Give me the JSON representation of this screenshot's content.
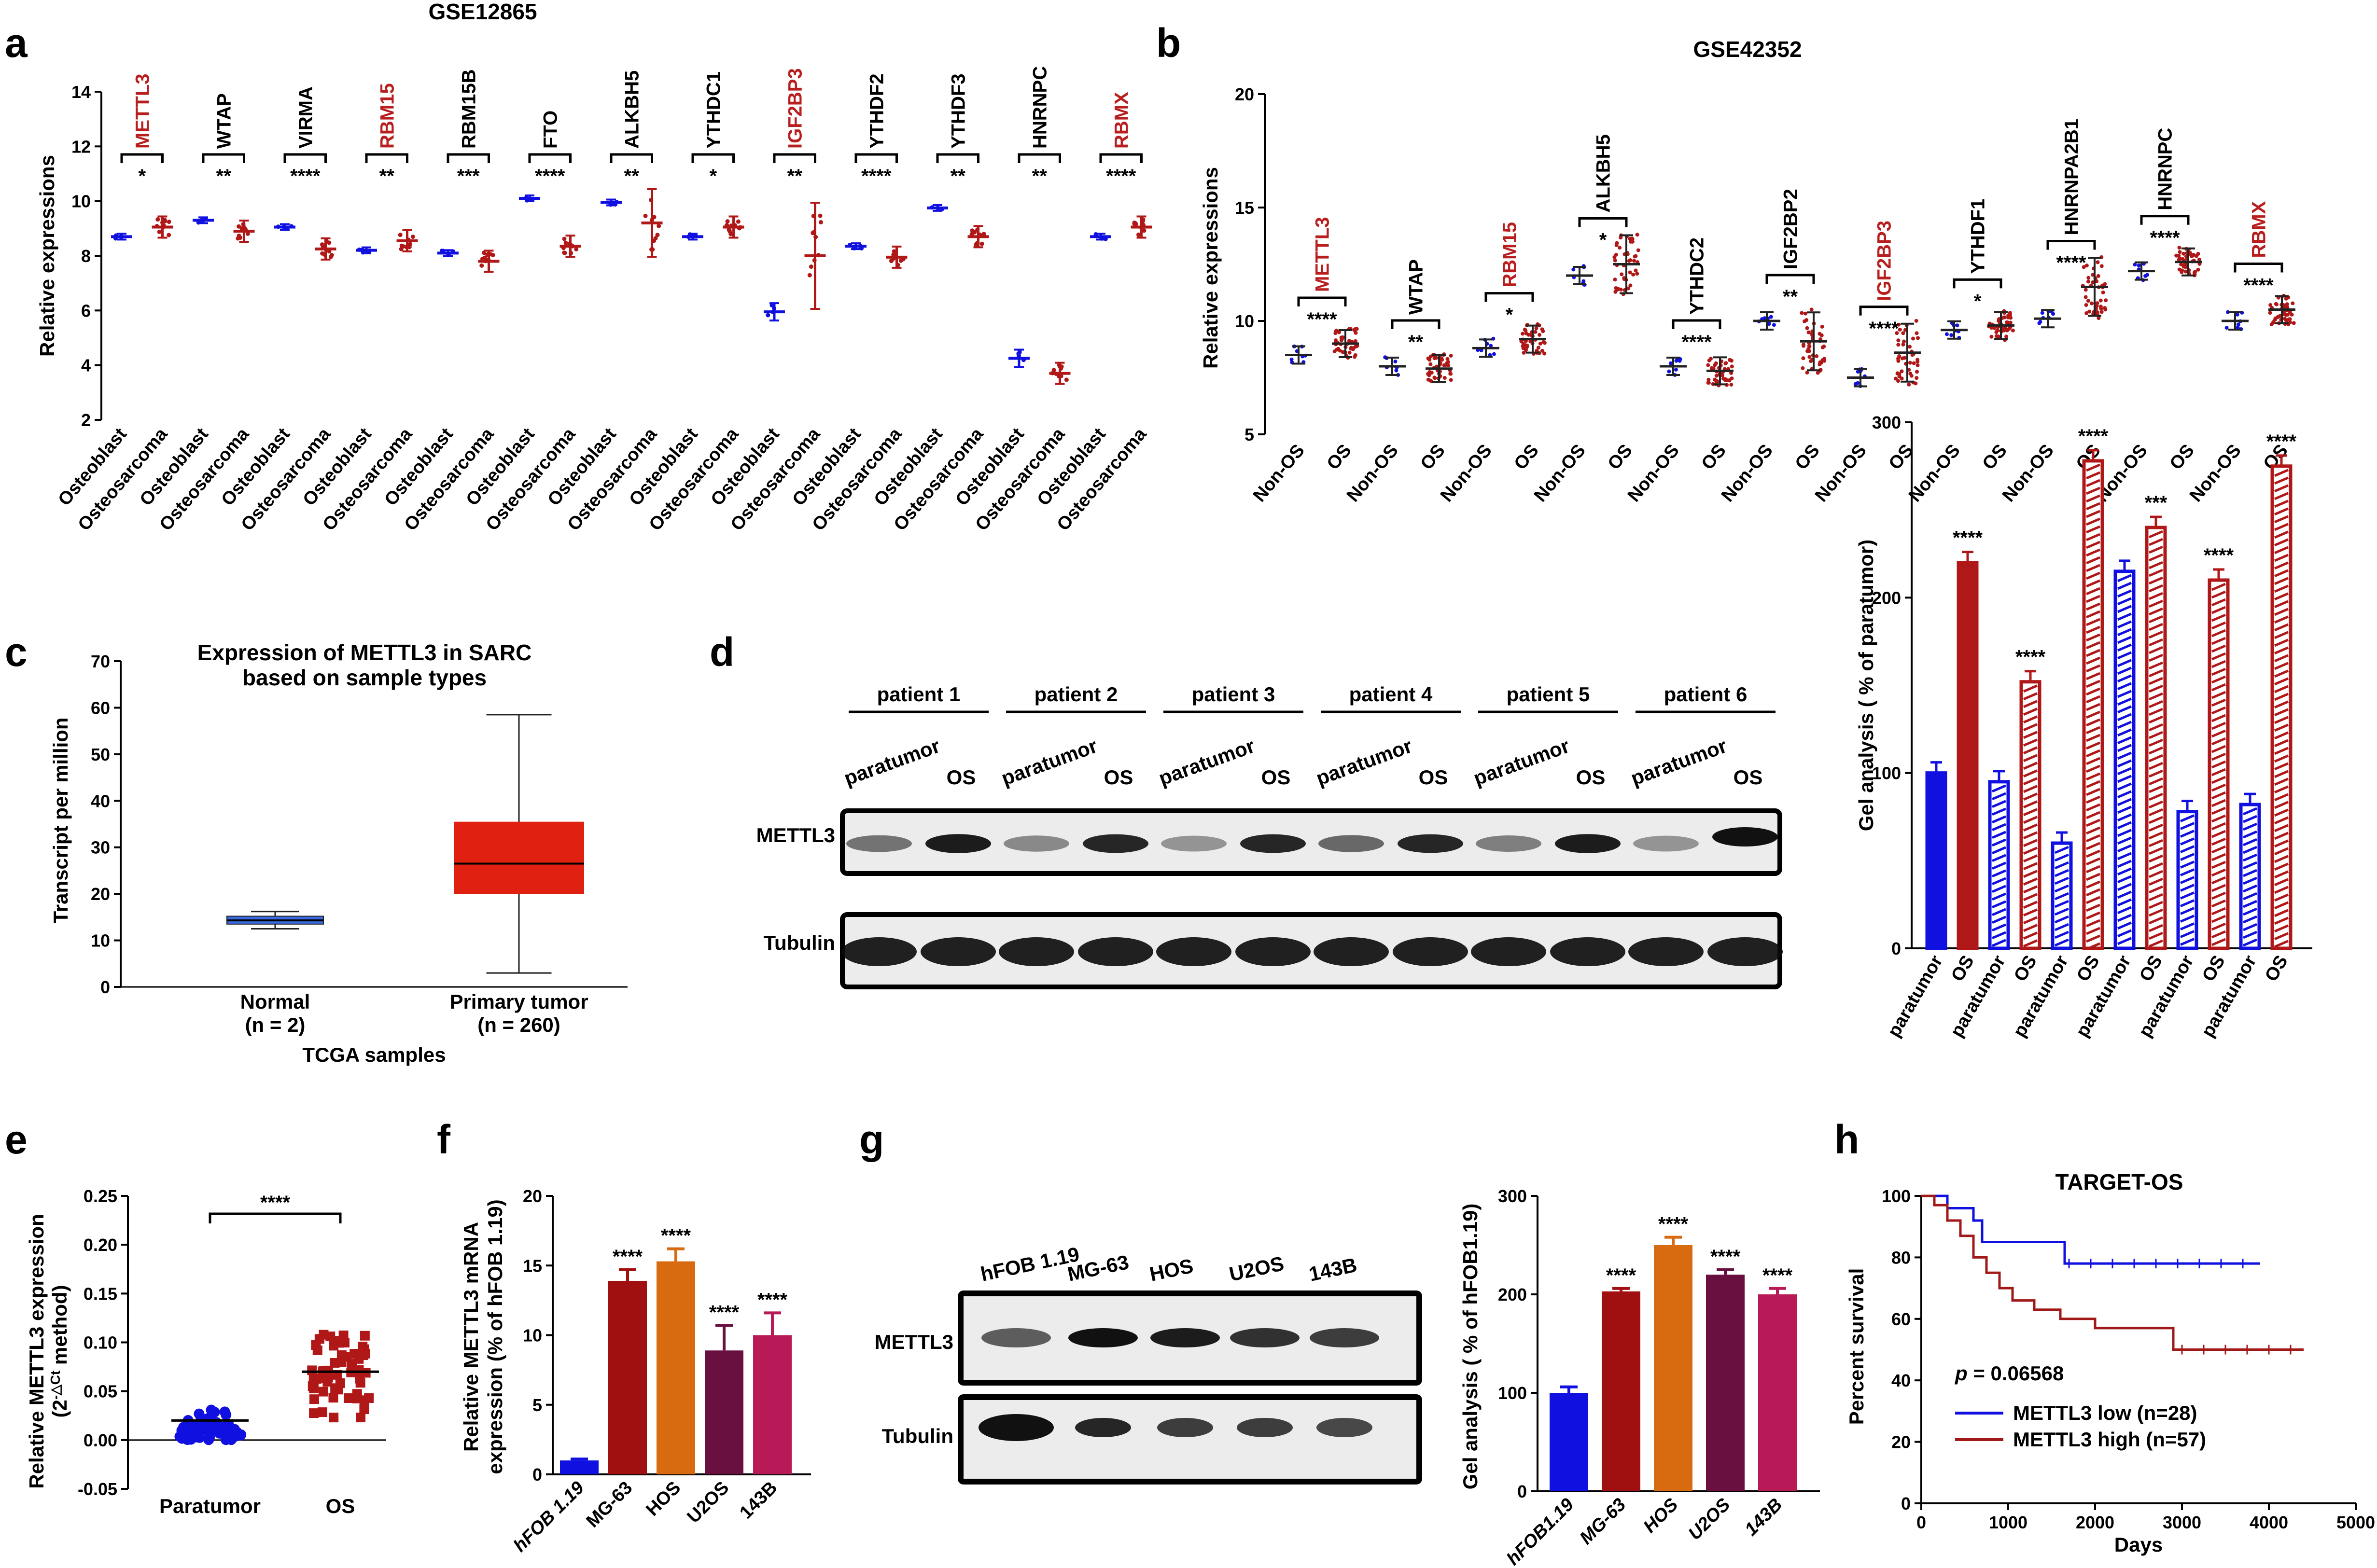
{
  "colors": {
    "blue": "#1010e0",
    "red": "#b01818",
    "orange": "#d86a10",
    "purple": "#6a1040",
    "magenta": "#b81a58",
    "highlight": "#b81e1e",
    "gray": "#777777"
  },
  "panel_labels": [
    "a",
    "b",
    "c",
    "d",
    "e",
    "f",
    "g",
    "h"
  ],
  "chart_data": [
    {
      "id": "a",
      "type": "scatter",
      "title": "GSE12865",
      "ylabel": "Relative expressions",
      "ylim": [
        2,
        14
      ],
      "yticks": [
        2,
        4,
        6,
        8,
        10,
        12,
        14
      ],
      "group_labels": [
        "Osteoblast",
        "Osteosarcoma"
      ],
      "genes": [
        {
          "name": "METTL3",
          "highlight": true,
          "sig": "*",
          "osteoblast": 8.7,
          "osteosarcoma": 9.05
        },
        {
          "name": "WTAP",
          "highlight": false,
          "sig": "**",
          "osteoblast": 9.3,
          "osteosarcoma": 8.9
        },
        {
          "name": "VIRMA",
          "highlight": false,
          "sig": "****",
          "osteoblast": 9.05,
          "osteosarcoma": 8.25
        },
        {
          "name": "RBM15",
          "highlight": true,
          "sig": "**",
          "osteoblast": 8.2,
          "osteosarcoma": 8.55
        },
        {
          "name": "RBM15B",
          "highlight": false,
          "sig": "***",
          "osteoblast": 8.1,
          "osteosarcoma": 7.8
        },
        {
          "name": "FTO",
          "highlight": false,
          "sig": "****",
          "osteoblast": 10.1,
          "osteosarcoma": 8.35
        },
        {
          "name": "ALKBH5",
          "highlight": false,
          "sig": "**",
          "osteoblast": 9.95,
          "osteosarcoma": 9.2
        },
        {
          "name": "YTHDC1",
          "highlight": false,
          "sig": "*",
          "osteoblast": 8.7,
          "osteosarcoma": 9.05
        },
        {
          "name": "IGF2BP3",
          "highlight": true,
          "sig": "**",
          "osteoblast": 5.95,
          "osteosarcoma": 8.0
        },
        {
          "name": "YTHDF2",
          "highlight": false,
          "sig": "****",
          "osteoblast": 8.35,
          "osteosarcoma": 7.95
        },
        {
          "name": "YTHDF3",
          "highlight": false,
          "sig": "**",
          "osteoblast": 9.75,
          "osteosarcoma": 8.7
        },
        {
          "name": "HNRNPC",
          "highlight": false,
          "sig": "**",
          "osteoblast": 4.25,
          "osteosarcoma": 3.7
        },
        {
          "name": "RBMX",
          "highlight": true,
          "sig": "****",
          "osteoblast": 8.7,
          "osteosarcoma": 9.05
        }
      ]
    },
    {
      "id": "b",
      "type": "scatter",
      "title": "GSE42352",
      "ylabel": "Relative expressions",
      "ylim": [
        5,
        20
      ],
      "yticks": [
        5,
        10,
        15,
        20
      ],
      "group_labels": [
        "Non-OS",
        "OS"
      ],
      "genes": [
        {
          "name": "METTL3",
          "highlight": true,
          "sig": "****",
          "nonos": 8.5,
          "os": 9.0
        },
        {
          "name": "WTAP",
          "highlight": false,
          "sig": "**",
          "nonos": 8.0,
          "os": 7.9
        },
        {
          "name": "RBM15",
          "highlight": true,
          "sig": "*",
          "nonos": 8.8,
          "os": 9.2
        },
        {
          "name": "ALKBH5",
          "highlight": false,
          "sig": "*",
          "nonos": 12.0,
          "os": 12.5
        },
        {
          "name": "YTHDC2",
          "highlight": false,
          "sig": "****",
          "nonos": 8.0,
          "os": 7.8
        },
        {
          "name": "IGF2BP2",
          "highlight": false,
          "sig": "**",
          "nonos": 10.0,
          "os": 9.1
        },
        {
          "name": "IGF2BP3",
          "highlight": true,
          "sig": "****",
          "nonos": 7.5,
          "os": 8.6
        },
        {
          "name": "YTHDF1",
          "highlight": false,
          "sig": "*",
          "nonos": 9.6,
          "os": 9.8
        },
        {
          "name": "HNRNPA2B1",
          "highlight": false,
          "sig": "****",
          "nonos": 10.1,
          "os": 11.5
        },
        {
          "name": "HNRNPC",
          "highlight": false,
          "sig": "****",
          "nonos": 12.2,
          "os": 12.6
        },
        {
          "name": "RBMX",
          "highlight": true,
          "sig": "****",
          "nonos": 10.0,
          "os": 10.5
        }
      ]
    },
    {
      "id": "c",
      "type": "box",
      "title": "Expression of METTL3 in SARC",
      "subtitle": "based on sample types",
      "ylabel": "Transcript per million",
      "xlabel": "TCGA samples",
      "ylim": [
        0,
        70
      ],
      "yticks": [
        0,
        10,
        20,
        30,
        40,
        50,
        60,
        70
      ],
      "boxes": [
        {
          "label": "Normal",
          "n_label": "(n = 2)",
          "min": 12.5,
          "q1": 13.5,
          "median": 14.3,
          "q3": 15.2,
          "max": 16.2
        },
        {
          "label": "Primary tumor",
          "n_label": "(n = 260)",
          "min": 3.0,
          "q1": 20.0,
          "median": 26.5,
          "q3": 35.5,
          "max": 58.5
        }
      ]
    },
    {
      "id": "d_bar",
      "type": "bar",
      "ylabel": "Gel analysis ( % of paratumor)",
      "ylim": [
        0,
        300
      ],
      "yticks": [
        0,
        100,
        200,
        300
      ],
      "categories": [
        "paratumor",
        "OS",
        "paratumor",
        "OS",
        "paratumor",
        "OS",
        "paratumor",
        "OS",
        "paratumor",
        "OS",
        "paratumor",
        "OS"
      ],
      "values": [
        100,
        220,
        95,
        152,
        60,
        278,
        215,
        240,
        78,
        210,
        82,
        275
      ],
      "sig": [
        "",
        "****",
        "",
        "****",
        "",
        "****",
        "",
        "***",
        "",
        "****",
        "",
        "****"
      ]
    },
    {
      "id": "e",
      "type": "scatter",
      "ylabel": "Relative METTL3 expression",
      "ylabel2": "(2",
      "ylabel2_sup": "-△Ct",
      "ylabel2_end": " method)",
      "ylim": [
        -0.05,
        0.25
      ],
      "yticks": [
        "-0.05",
        "0.00",
        "0.05",
        "0.10",
        "0.15",
        "0.20",
        "0.25"
      ],
      "groups": [
        {
          "name": "Paratumor",
          "mean": 0.02
        },
        {
          "name": "OS",
          "mean": 0.07
        }
      ],
      "sig": "****"
    },
    {
      "id": "f",
      "type": "bar",
      "ylabel": "Relative METTL3 mRNA",
      "ylabel2": "expression (% of hFOB 1.19)",
      "ylim": [
        0,
        20
      ],
      "yticks": [
        0,
        5,
        10,
        15,
        20
      ],
      "categories": [
        "hFOB 1.19",
        "MG-63",
        "HOS",
        "U2OS",
        "143B"
      ],
      "values": [
        1.0,
        13.9,
        15.3,
        8.9,
        10.0
      ],
      "sig": [
        "",
        "****",
        "****",
        "****",
        "****"
      ]
    },
    {
      "id": "g_bar",
      "type": "bar",
      "ylabel": "Gel analysis ( % of hFOB1.19)",
      "ylim": [
        0,
        300
      ],
      "yticks": [
        0,
        100,
        200,
        300
      ],
      "categories": [
        "hFOB1.19",
        "MG-63",
        "HOS",
        "U2OS",
        "143B"
      ],
      "values": [
        100,
        203,
        250,
        220,
        200
      ],
      "sig": [
        "",
        "****",
        "****",
        "****",
        "****"
      ]
    },
    {
      "id": "h",
      "type": "line",
      "title": "TARGET-OS",
      "ylabel": "Percent survival",
      "xlabel": "Days",
      "ylim": [
        0,
        100
      ],
      "xlim": [
        0,
        5000
      ],
      "yticks": [
        0,
        20,
        40,
        60,
        80,
        100
      ],
      "xticks": [
        0,
        1000,
        2000,
        3000,
        4000,
        5000
      ],
      "p_label": "p",
      "p_value": " = 0.06568",
      "series": [
        {
          "name": "METTL3 low (n=28)",
          "points": [
            [
              0,
              100
            ],
            [
              300,
              96
            ],
            [
              600,
              92
            ],
            [
              700,
              85
            ],
            [
              1650,
              85
            ],
            [
              1650,
              78
            ],
            [
              3900,
              78
            ]
          ]
        },
        {
          "name": "METTL3 high (n=57)",
          "points": [
            [
              0,
              100
            ],
            [
              150,
              97
            ],
            [
              300,
              92
            ],
            [
              450,
              87
            ],
            [
              600,
              80
            ],
            [
              750,
              75
            ],
            [
              900,
              70
            ],
            [
              1050,
              66
            ],
            [
              1300,
              63
            ],
            [
              1600,
              60
            ],
            [
              2000,
              57
            ],
            [
              2900,
              57
            ],
            [
              2900,
              50
            ],
            [
              4400,
              50
            ]
          ]
        }
      ]
    }
  ],
  "blots": {
    "d": {
      "patients": [
        "patient 1",
        "patient 2",
        "patient 3",
        "patient 4",
        "patient 5",
        "patient 6"
      ],
      "lane_labels": [
        "paratumor",
        "OS"
      ],
      "rows": [
        "METTL3",
        "Tubulin"
      ]
    },
    "g": {
      "lanes": [
        "hFOB 1.19",
        "MG-63",
        "HOS",
        "U2OS",
        "143B"
      ],
      "rows": [
        "METTL3",
        "Tubulin"
      ]
    }
  }
}
